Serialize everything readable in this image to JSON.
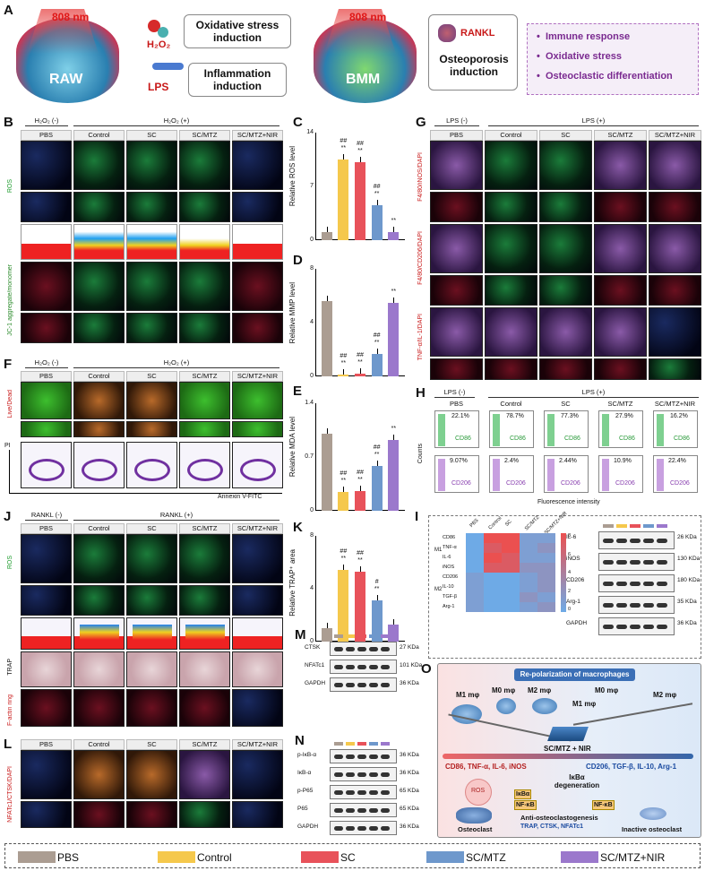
{
  "panel_labels": {
    "A": "A",
    "B": "B",
    "C": "C",
    "D": "D",
    "E": "E",
    "F": "F",
    "G": "G",
    "H": "H",
    "I": "I",
    "J": "J",
    "K": "K",
    "L": "L",
    "M": "M",
    "N": "N",
    "O": "O"
  },
  "panelA": {
    "nm1": "808 nm",
    "nm2": "808 nm",
    "raw": "RAW",
    "bmm": "BMM",
    "h2o2": "H₂O₂",
    "lps": "LPS",
    "rankl": "RANKL",
    "ox_title": "Oxidative stress induction",
    "inf_title": "Inflammation induction",
    "osteo_title": "Osteoporosis induction",
    "bullets": [
      "Immune response",
      "Oxidative stress",
      "Osteoclastic differentiation"
    ]
  },
  "groups": {
    "h2o2_neg": "H₂O₂ (-)",
    "h2o2_pos": "H₂O₂ (+)",
    "lps_neg": "LPS (-)",
    "lps_pos": "LPS (+)",
    "rankl_neg": "RANKL (-)",
    "rankl_pos": "RANKL (+)"
  },
  "columns": [
    "PBS",
    "Control",
    "SC",
    "SC/MTZ",
    "SC/MTZ+NIR"
  ],
  "side_labels": {
    "ros": "ROS",
    "jc1": "JC-1 aggregate/monomer",
    "live": "Live/Dead",
    "pi": "PI",
    "annexin": "Annexin V-FITC",
    "f480_inos": "F4/80/iNOS/DAPI",
    "f480_cd206": "F4/80/CD206/DAPI",
    "tnf": "TNF-α/IL-1/DAPI",
    "ros_j": "ROS",
    "trap": "TRAP",
    "factin": "F-actin ring",
    "nfat": "NFATc1/CTSK/DAPI"
  },
  "panelH": {
    "counts": "Counts",
    "xlabel": "Fluorescence intensity",
    "cd86": "CD86",
    "cd206": "CD206",
    "cd86_values": [
      "22.1%",
      "78.7%",
      "77.3%",
      "27.9%",
      "16.2%"
    ],
    "cd206_values": [
      "9.07%",
      "2.4%",
      "2.44%",
      "10.9%",
      "22.4%"
    ]
  },
  "colors": {
    "PBS": "#ab9d92",
    "Control": "#f5c84c",
    "SC": "#e8525a",
    "SC/MTZ": "#6e98cc",
    "SC/MTZ+NIR": "#9b78cc"
  },
  "chart_data": [
    {
      "type": "bar",
      "panel": "C",
      "categories": [
        "PBS",
        "Control",
        "SC",
        "SC/MTZ",
        "SC/MTZ+NIR"
      ],
      "values": [
        1,
        10.5,
        10.2,
        4.6,
        1
      ],
      "ylabel": "Relative ROS level",
      "ylim": [
        0,
        14
      ],
      "yticks": [
        0,
        7,
        14
      ],
      "sig": [
        "",
        "##\n**",
        "##\n**",
        "##\n**",
        "**"
      ]
    },
    {
      "type": "bar",
      "panel": "D",
      "categories": [
        "PBS",
        "Control",
        "SC",
        "SC/MTZ",
        "SC/MTZ+NIR"
      ],
      "values": [
        5.6,
        0.15,
        0.2,
        1.7,
        5.5
      ],
      "ylabel": "Relative MMP level",
      "ylim": [
        0,
        8
      ],
      "yticks": [
        0,
        4,
        8
      ],
      "sig": [
        "",
        "##\n**",
        "##\n**",
        "##\n**",
        "**"
      ]
    },
    {
      "type": "bar",
      "panel": "E",
      "categories": [
        "PBS",
        "Control",
        "SC",
        "SC/MTZ",
        "SC/MTZ+NIR"
      ],
      "values": [
        1,
        0.24,
        0.26,
        0.58,
        0.92
      ],
      "ylabel": "Relative MDA level",
      "ylim": [
        0,
        1.4
      ],
      "yticks": [
        0,
        0.7,
        1.4
      ],
      "sig": [
        "",
        "##\n**",
        "##\n**",
        "##\n**",
        "**"
      ]
    },
    {
      "type": "bar",
      "panel": "K",
      "categories": [
        "PBS",
        "Control",
        "SC",
        "SC/MTZ",
        "SC/MTZ+NIR"
      ],
      "values": [
        1,
        5.4,
        5.3,
        3.1,
        1.3
      ],
      "ylabel": "Relative TRAP⁺ area",
      "ylim": [
        0,
        8
      ],
      "yticks": [
        0,
        4,
        8
      ],
      "sig": [
        "",
        "##\n**",
        "##\n**",
        "#\n**",
        ""
      ]
    }
  ],
  "panelI": {
    "rows": [
      "CD86",
      "TNF-α",
      "IL-6",
      "iNOS",
      "CD206",
      "IL-10",
      "TGF-β",
      "Arg-1"
    ],
    "m1": "M1",
    "m2": "M2",
    "cols": [
      "PBS",
      "Control",
      "SC",
      "SC/MTZ",
      "SC/MTZ+NIR"
    ],
    "scale": [
      "8",
      "6",
      "4",
      "2",
      "0"
    ],
    "blots": [
      {
        "name": "IL-6",
        "kda": "26 KDa"
      },
      {
        "name": "iNOS",
        "kda": "130 KDa"
      },
      {
        "name": "CD206",
        "kda": "180 KDa"
      },
      {
        "name": "Arg-1",
        "kda": "35 KDa"
      },
      {
        "name": "GAPDH",
        "kda": "36 KDa"
      }
    ]
  },
  "panelM": {
    "blots": [
      {
        "name": "CTSK",
        "kda": "27 KDa"
      },
      {
        "name": "NFATc1",
        "kda": "101 KDa"
      },
      {
        "name": "GAPDH",
        "kda": "36 KDa"
      }
    ]
  },
  "panelN": {
    "blots": [
      {
        "name": "p-IκB-α",
        "kda": "36 KDa"
      },
      {
        "name": "IκB-α",
        "kda": "36 KDa"
      },
      {
        "name": "p-P65",
        "kda": "65 KDa"
      },
      {
        "name": "P65",
        "kda": "65 KDa"
      },
      {
        "name": "GAPDH",
        "kda": "36 KDa"
      }
    ]
  },
  "panelO": {
    "title": "Re-polarization of macrophages",
    "m1": "M1 mφ",
    "m2": "M2 mφ",
    "m0": "M0 mφ",
    "m1b": "M1 mφ",
    "m0b": "M0 mφ",
    "m2b": "M2 mφ",
    "sc": "SC/MTZ + NIR",
    "left_markers": "CD86, TNF-α, IL-6, iNOS",
    "right_markers": "CD206, TGF-β, IL-10, Arg-1",
    "ikb_deg": "IκBα degeneration",
    "ikba": "IκBα",
    "nfkb": "NF-κB",
    "nfkb2": "NF-κB",
    "ros": "ROS",
    "osteoclast": "Osteoclast",
    "anti": "Anti-osteoclastogenesis",
    "trap_line": "TRAP, CTSK, NFATc1",
    "inactive": "Inactive osteoclast"
  },
  "legend": [
    "PBS",
    "Control",
    "SC",
    "SC/MTZ",
    "SC/MTZ+NIR"
  ]
}
